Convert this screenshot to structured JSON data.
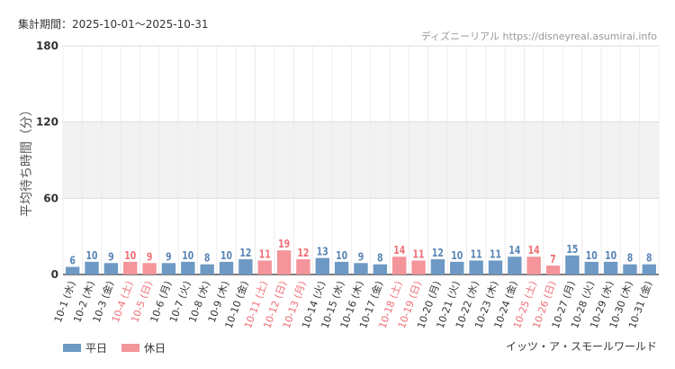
{
  "header": {
    "period": "集計期間：2025-10-01～2025-10-31",
    "source": "ディズニーリアル https://disneyreal.asumirai.info"
  },
  "footer": {
    "attraction": "イッツ・ア・スモールワールド"
  },
  "legend": [
    {
      "label": "平日",
      "color": "#6d99c4"
    },
    {
      "label": "休日",
      "color": "#f3959a"
    }
  ],
  "colors": {
    "weekday_bar": "#6d99c4",
    "holiday_bar": "#f3959a",
    "weekday_text": "#333333",
    "holiday_text": "#ef6f76",
    "weekday_value": "#5a85b5",
    "holiday_value": "#ef6f76",
    "band": "#f2f2f2"
  },
  "chart_data": {
    "type": "bar",
    "ylabel": "平均待ち時間（分）",
    "ylim": [
      0,
      180
    ],
    "yticks": [
      0,
      60,
      120,
      180
    ],
    "shaded_band": [
      60,
      120
    ],
    "grid": true,
    "legend_position": "bottom-left",
    "categories": [
      "10-1 (水)",
      "10-2 (木)",
      "10-3 (金)",
      "10-4 (土)",
      "10-5 (日)",
      "10-6 (月)",
      "10-7 (火)",
      "10-8 (水)",
      "10-9 (木)",
      "10-10 (金)",
      "10-11 (土)",
      "10-12 (日)",
      "10-13 (月)",
      "10-14 (火)",
      "10-15 (水)",
      "10-16 (木)",
      "10-17 (金)",
      "10-18 (土)",
      "10-19 (日)",
      "10-20 (月)",
      "10-21 (火)",
      "10-22 (水)",
      "10-23 (木)",
      "10-24 (金)",
      "10-25 (土)",
      "10-26 (日)",
      "10-27 (月)",
      "10-28 (火)",
      "10-29 (水)",
      "10-30 (木)",
      "10-31 (金)"
    ],
    "values": [
      6,
      10,
      9,
      10,
      9,
      9,
      10,
      8,
      10,
      12,
      11,
      19,
      12,
      13,
      10,
      9,
      8,
      14,
      11,
      12,
      10,
      11,
      11,
      14,
      14,
      7,
      15,
      10,
      10,
      8,
      8
    ],
    "holiday": [
      false,
      false,
      false,
      true,
      true,
      false,
      false,
      false,
      false,
      false,
      true,
      true,
      true,
      false,
      false,
      false,
      false,
      true,
      true,
      false,
      false,
      false,
      false,
      false,
      true,
      true,
      false,
      false,
      false,
      false,
      false
    ]
  }
}
